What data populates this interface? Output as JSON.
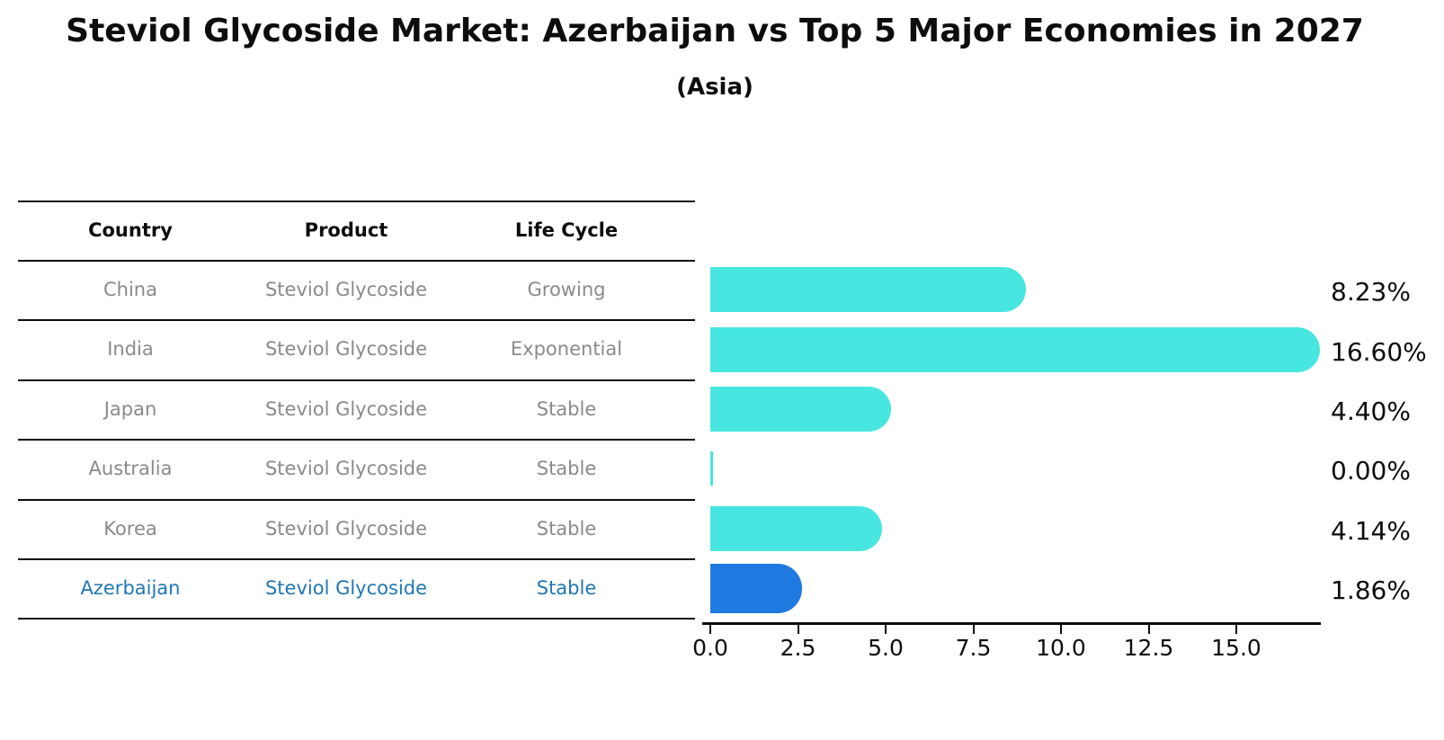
{
  "title": "Steviol Glycoside Market: Azerbaijan vs Top 5 Major Economies in 2027",
  "subtitle": "(Asia)",
  "table": {
    "headers": [
      "Country",
      "Product",
      "Life Cycle"
    ],
    "rows": [
      {
        "country": "China",
        "product": "Steviol Glycoside",
        "life_cycle": "Growing",
        "highlight": false
      },
      {
        "country": "India",
        "product": "Steviol Glycoside",
        "life_cycle": "Exponential",
        "highlight": false
      },
      {
        "country": "Japan",
        "product": "Steviol Glycoside",
        "life_cycle": "Stable",
        "highlight": false
      },
      {
        "country": "Australia",
        "product": "Steviol Glycoside",
        "life_cycle": "Stable",
        "highlight": false
      },
      {
        "country": "Korea",
        "product": "Steviol Glycoside",
        "life_cycle": "Stable",
        "highlight": false
      },
      {
        "country": "Azerbaijan",
        "product": "Steviol Glycoside",
        "life_cycle": "Stable",
        "highlight": true
      }
    ]
  },
  "chart_data": {
    "type": "bar",
    "orientation": "horizontal",
    "title": "Steviol Glycoside Market: Azerbaijan vs Top 5 Major Economies in 2027",
    "subtitle": "(Asia)",
    "categories": [
      "China",
      "India",
      "Japan",
      "Australia",
      "Korea",
      "Azerbaijan"
    ],
    "values": [
      8.23,
      16.6,
      4.4,
      0.0,
      4.14,
      1.86
    ],
    "value_labels": [
      "8.23%",
      "16.60%",
      "4.40%",
      "0.00%",
      "4.14%",
      "1.86%"
    ],
    "x_ticks": [
      "0.0",
      "2.5",
      "5.0",
      "7.5",
      "10.0",
      "12.5",
      "15.0"
    ],
    "xlim": [
      0,
      17.4
    ],
    "xlabel": "",
    "ylabel": "",
    "grid": false,
    "legend": false,
    "bar_color": "#48e6e0",
    "highlight_index": 5,
    "highlight_bar_color": "#1e7ae0",
    "highlight_text_color": "#1f77b4",
    "text_color": "#0d0d0d",
    "row_text_color": "#8a8a8a"
  }
}
